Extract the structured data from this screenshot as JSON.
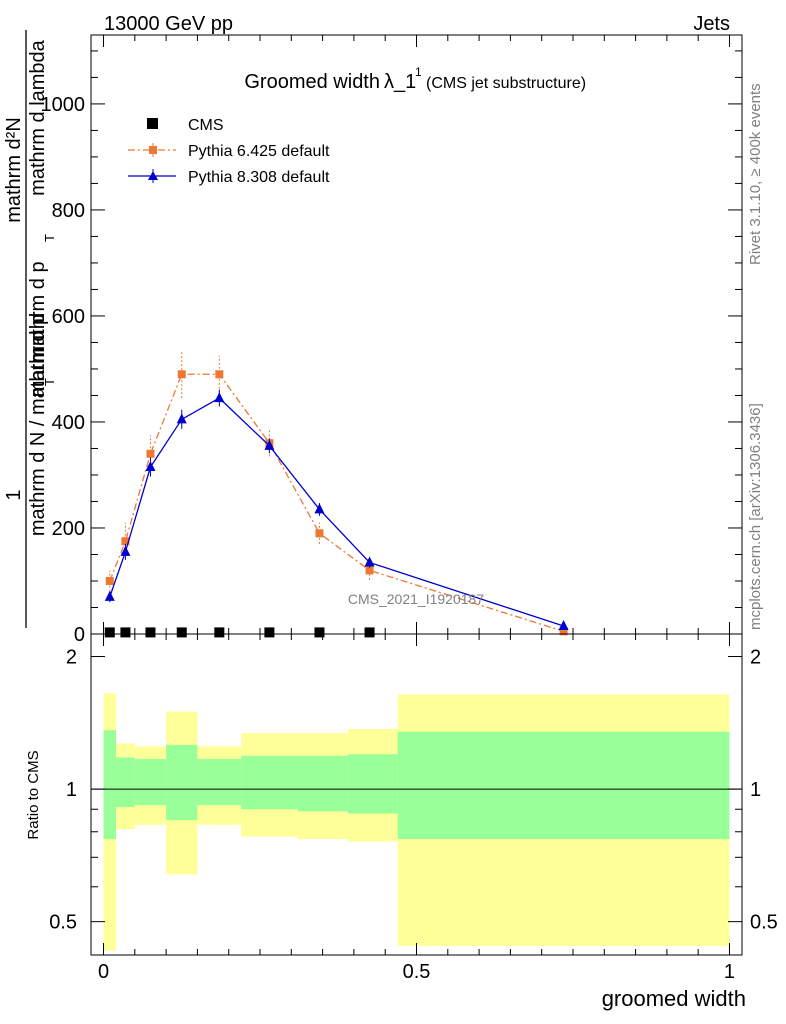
{
  "header": {
    "left": "13000 GeV pp",
    "right": "Jets"
  },
  "side_labels": {
    "rivet": "Rivet 3.1.10, ≥ 400k events",
    "mcplots": "mcplots.cern.ch [arXiv:1306.3436]"
  },
  "colors": {
    "cms": "#000000",
    "pythia6": "#ee7733",
    "pythia8": "#0000cc",
    "band_outer": "#ffff99",
    "band_inner": "#99ff99"
  },
  "chart_data": [
    {
      "type": "line",
      "title_main": "Groomed width",
      "title_symbol": "λ_1",
      "title_sup": "1",
      "title_sub": "(CMS jet substructure)",
      "watermark": "CMS_2021_I1920187",
      "xlim": [
        -0.02,
        1.02
      ],
      "ylim": [
        0,
        1130
      ],
      "ylabel_num_a": "1",
      "ylabel_num_b": "mathrm d²N",
      "ylabel_den_a": "mathrm d N / mathrm d p",
      "ylabel_den_b": "mathrm d p",
      "ylabel_den_c": "mathrm d lambda",
      "ylabel_den_mid": "mathrm d",
      "ylabel_sub": "T",
      "yticks": [
        0,
        200,
        400,
        600,
        800,
        1000
      ],
      "legend_position": "top-left",
      "series": [
        {
          "name": "CMS",
          "marker": "square",
          "x": [
            0.01,
            0.035,
            0.075,
            0.125,
            0.185,
            0.265,
            0.345,
            0.425
          ],
          "y": [
            3,
            3,
            3,
            3,
            3,
            3,
            3,
            3
          ]
        },
        {
          "name": "Pythia 6.425 default",
          "marker": "square",
          "linestyle": "dashdot",
          "x": [
            0.01,
            0.035,
            0.075,
            0.125,
            0.185,
            0.265,
            0.345,
            0.425,
            0.735
          ],
          "y": [
            100,
            175,
            340,
            490,
            490,
            360,
            190,
            120,
            5
          ],
          "yerr": [
            20,
            35,
            35,
            45,
            35,
            25,
            20,
            18,
            3
          ]
        },
        {
          "name": "Pythia 8.308 default",
          "marker": "triangle",
          "linestyle": "solid",
          "x": [
            0.01,
            0.035,
            0.075,
            0.125,
            0.185,
            0.265,
            0.345,
            0.425,
            0.735
          ],
          "y": [
            70,
            155,
            315,
            405,
            445,
            355,
            235,
            135,
            15
          ],
          "yerr": [
            10,
            15,
            18,
            18,
            16,
            14,
            12,
            10,
            3
          ]
        }
      ]
    },
    {
      "type": "area",
      "xlabel": "groomed width",
      "ylabel": "Ratio to CMS",
      "xlim": [
        -0.02,
        1.02
      ],
      "ylim": [
        0.42,
        2.25
      ],
      "yticks": [
        0.5,
        1,
        2
      ],
      "ytick_labels": [
        "0.5",
        "1",
        "2"
      ],
      "xticks": [
        0,
        0.5,
        1
      ],
      "xtick_labels": [
        "0",
        "0.5",
        "1"
      ],
      "reference_line": 1,
      "bins": [
        {
          "x0": 0.0,
          "x1": 0.02,
          "outer": [
            0.43,
            1.65
          ],
          "inner": [
            0.77,
            1.36
          ]
        },
        {
          "x0": 0.02,
          "x1": 0.05,
          "outer": [
            0.81,
            1.27
          ],
          "inner": [
            0.91,
            1.18
          ]
        },
        {
          "x0": 0.05,
          "x1": 0.1,
          "outer": [
            0.83,
            1.25
          ],
          "inner": [
            0.92,
            1.17
          ]
        },
        {
          "x0": 0.1,
          "x1": 0.15,
          "outer": [
            0.64,
            1.5
          ],
          "inner": [
            0.85,
            1.26
          ]
        },
        {
          "x0": 0.15,
          "x1": 0.22,
          "outer": [
            0.83,
            1.25
          ],
          "inner": [
            0.92,
            1.17
          ]
        },
        {
          "x0": 0.22,
          "x1": 0.31,
          "outer": [
            0.78,
            1.34
          ],
          "inner": [
            0.9,
            1.19
          ]
        },
        {
          "x0": 0.31,
          "x1": 0.39,
          "outer": [
            0.77,
            1.34
          ],
          "inner": [
            0.89,
            1.19
          ]
        },
        {
          "x0": 0.39,
          "x1": 0.47,
          "outer": [
            0.76,
            1.37
          ],
          "inner": [
            0.88,
            1.2
          ]
        },
        {
          "x0": 0.47,
          "x1": 1.0,
          "outer": [
            0.44,
            1.64
          ],
          "inner": [
            0.77,
            1.35
          ]
        }
      ]
    }
  ]
}
